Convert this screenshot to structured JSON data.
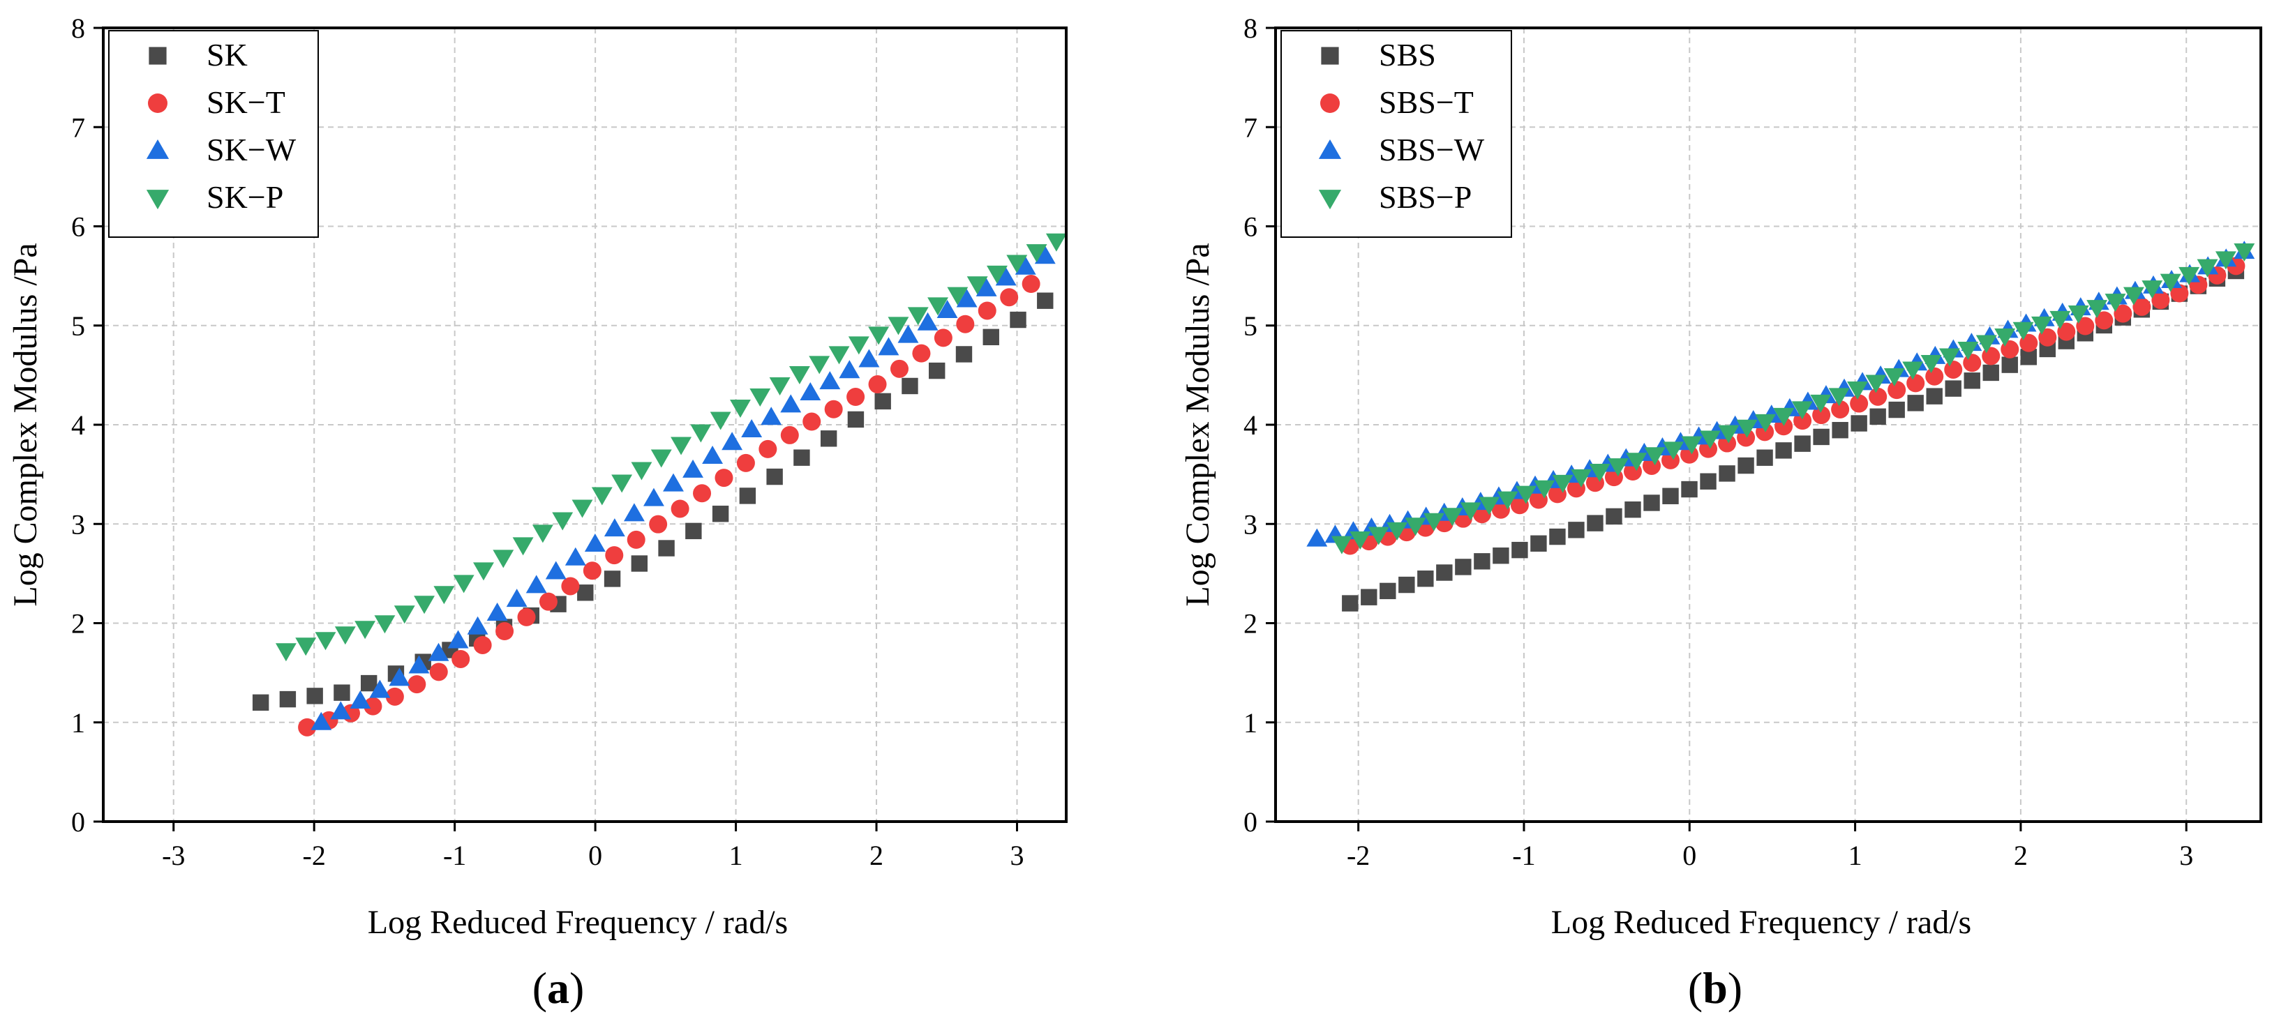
{
  "captions": {
    "a": {
      "open": "(",
      "letter": "a",
      "close": ")"
    },
    "b": {
      "open": "(",
      "letter": "b",
      "close": ")"
    }
  },
  "colors": {
    "square": "#4a4a4a",
    "circle": "#ef3e3e",
    "triangle_up": "#1e6fe0",
    "triangle_down": "#36aa6b"
  },
  "chart_data": [
    {
      "id": "a",
      "type": "scatter",
      "title": "",
      "xlabel": "Log Reduced Frequency / rad/s",
      "ylabel": "Log Complex Modulus /Pa",
      "xlim": [
        -3.5,
        3.35
      ],
      "ylim": [
        0,
        8
      ],
      "xticks": [
        -3,
        -2,
        -1,
        0,
        1,
        2,
        3
      ],
      "yticks": [
        0,
        1,
        2,
        3,
        4,
        5,
        6,
        7,
        8
      ],
      "grid": true,
      "legend_position": "top-left",
      "series": [
        {
          "name": "SK",
          "marker": "square",
          "x_start": -2.38,
          "x_end": 3.2,
          "y_start": 1.2,
          "y_end": 5.25,
          "n": 30,
          "curve": [
            [
              -2.38,
              1.2
            ],
            [
              -1.8,
              1.3
            ],
            [
              -1.4,
              1.5
            ],
            [
              -1.0,
              1.75
            ],
            [
              -0.5,
              2.05
            ],
            [
              0.0,
              2.35
            ],
            [
              0.5,
              2.75
            ],
            [
              1.0,
              3.2
            ],
            [
              1.5,
              3.7
            ],
            [
              2.0,
              4.2
            ],
            [
              2.5,
              4.6
            ],
            [
              3.0,
              5.05
            ],
            [
              3.2,
              5.25
            ]
          ]
        },
        {
          "name": "SK−T",
          "marker": "circle",
          "x_start": -2.05,
          "x_end": 3.1,
          "y_start": 0.95,
          "y_end": 5.42,
          "n": 34,
          "curve": [
            [
              -2.05,
              0.95
            ],
            [
              -1.5,
              1.2
            ],
            [
              -1.0,
              1.6
            ],
            [
              -0.5,
              2.05
            ],
            [
              0.0,
              2.55
            ],
            [
              0.5,
              3.05
            ],
            [
              1.0,
              3.55
            ],
            [
              1.5,
              4.0
            ],
            [
              2.0,
              4.4
            ],
            [
              2.5,
              4.9
            ],
            [
              3.1,
              5.42
            ]
          ]
        },
        {
          "name": "SK−W",
          "marker": "triangle_up",
          "x_start": -1.95,
          "x_end": 3.2,
          "y_start": 1.0,
          "y_end": 5.7,
          "n": 38,
          "curve": [
            [
              -1.95,
              1.0
            ],
            [
              -1.5,
              1.35
            ],
            [
              -1.0,
              1.8
            ],
            [
              -0.5,
              2.3
            ],
            [
              0.0,
              2.8
            ],
            [
              0.5,
              3.35
            ],
            [
              1.0,
              3.85
            ],
            [
              1.5,
              4.3
            ],
            [
              2.0,
              4.7
            ],
            [
              2.5,
              5.15
            ],
            [
              3.2,
              5.7
            ]
          ]
        },
        {
          "name": "SK−P",
          "marker": "triangle_down",
          "x_start": -2.2,
          "x_end": 3.28,
          "y_start": 1.72,
          "y_end": 5.85,
          "n": 40,
          "curve": [
            [
              -2.2,
              1.72
            ],
            [
              -1.5,
              2.0
            ],
            [
              -1.0,
              2.35
            ],
            [
              -0.5,
              2.8
            ],
            [
              0.0,
              3.25
            ],
            [
              0.5,
              3.7
            ],
            [
              1.0,
              4.15
            ],
            [
              1.5,
              4.55
            ],
            [
              2.0,
              4.9
            ],
            [
              2.5,
              5.25
            ],
            [
              3.28,
              5.85
            ]
          ]
        }
      ]
    },
    {
      "id": "b",
      "type": "scatter",
      "title": "",
      "xlabel": "Log Reduced Frequency / rad/s",
      "ylabel": "Log Complex Modulus /Pa",
      "xlim": [
        -2.5,
        3.45
      ],
      "ylim": [
        0,
        8
      ],
      "xticks": [
        -2,
        -1,
        0,
        1,
        2,
        3
      ],
      "yticks": [
        0,
        1,
        2,
        3,
        4,
        5,
        6,
        7,
        8
      ],
      "grid": true,
      "legend_position": "top-left",
      "series": [
        {
          "name": "SBS",
          "marker": "square",
          "x_start": -2.05,
          "x_end": 3.3,
          "y_start": 2.2,
          "y_end": 5.55,
          "n": 48,
          "curve": [
            [
              -2.05,
              2.2
            ],
            [
              -1.5,
              2.5
            ],
            [
              -1.0,
              2.75
            ],
            [
              -0.5,
              3.05
            ],
            [
              0.0,
              3.35
            ],
            [
              0.5,
              3.7
            ],
            [
              1.0,
              4.0
            ],
            [
              1.5,
              4.3
            ],
            [
              2.0,
              4.65
            ],
            [
              2.5,
              5.0
            ],
            [
              3.0,
              5.35
            ],
            [
              3.3,
              5.55
            ]
          ]
        },
        {
          "name": "SBS−T",
          "marker": "circle",
          "x_start": -2.05,
          "x_end": 3.3,
          "y_start": 2.78,
          "y_end": 5.6,
          "n": 48,
          "curve": [
            [
              -2.05,
              2.78
            ],
            [
              -1.5,
              3.0
            ],
            [
              -1.0,
              3.2
            ],
            [
              -0.5,
              3.45
            ],
            [
              0.0,
              3.7
            ],
            [
              0.5,
              3.95
            ],
            [
              1.0,
              4.2
            ],
            [
              1.5,
              4.5
            ],
            [
              2.0,
              4.8
            ],
            [
              2.5,
              5.05
            ],
            [
              3.0,
              5.35
            ],
            [
              3.3,
              5.6
            ]
          ]
        },
        {
          "name": "SBS−W",
          "marker": "triangle_up",
          "x_start": -2.25,
          "x_end": 3.35,
          "y_start": 2.85,
          "y_end": 5.75,
          "n": 52,
          "curve": [
            [
              -2.25,
              2.85
            ],
            [
              -1.5,
              3.1
            ],
            [
              -1.0,
              3.35
            ],
            [
              -0.5,
              3.6
            ],
            [
              0.0,
              3.85
            ],
            [
              0.5,
              4.1
            ],
            [
              1.0,
              4.4
            ],
            [
              1.5,
              4.7
            ],
            [
              2.0,
              5.0
            ],
            [
              2.5,
              5.25
            ],
            [
              3.0,
              5.5
            ],
            [
              3.35,
              5.75
            ]
          ]
        },
        {
          "name": "SBS−P",
          "marker": "triangle_down",
          "x_start": -2.1,
          "x_end": 3.35,
          "y_start": 2.8,
          "y_end": 5.75,
          "n": 50,
          "curve": [
            [
              -2.1,
              2.8
            ],
            [
              -1.5,
              3.05
            ],
            [
              -1.0,
              3.3
            ],
            [
              -0.5,
              3.55
            ],
            [
              0.0,
              3.8
            ],
            [
              0.5,
              4.05
            ],
            [
              1.0,
              4.35
            ],
            [
              1.5,
              4.65
            ],
            [
              2.0,
              4.95
            ],
            [
              2.5,
              5.2
            ],
            [
              3.0,
              5.5
            ],
            [
              3.35,
              5.75
            ]
          ]
        }
      ]
    }
  ]
}
